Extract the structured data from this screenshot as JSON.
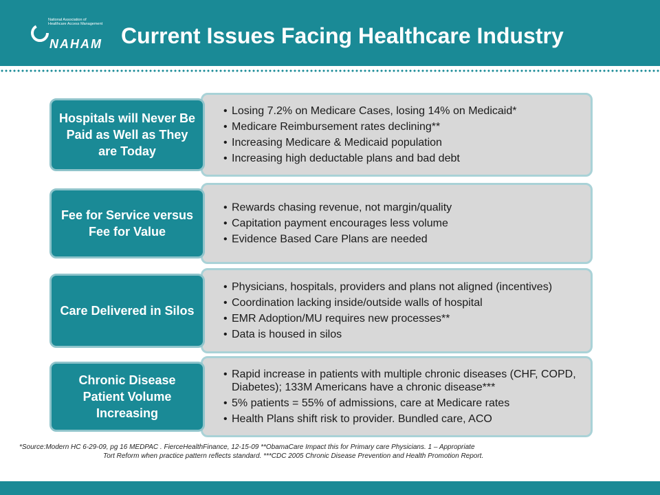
{
  "logo": {
    "org_line1": "National Association of",
    "org_line2": "Healthcare Access Management",
    "name": "NAHAM"
  },
  "title": "Current Issues Facing Healthcare Industry",
  "rows": [
    {
      "label": "Hospitals will Never Be Paid as Well as They are Today",
      "bullets": [
        "Losing 7.2% on Medicare Cases, losing 14% on Medicaid*",
        "Medicare Reimbursement rates declining**",
        "Increasing Medicare & Medicaid population",
        "Increasing high deductable plans and bad debt"
      ]
    },
    {
      "label": "Fee for Service versus Fee for Value",
      "bullets": [
        "Rewards chasing revenue, not margin/quality",
        "Capitation payment encourages less volume",
        "Evidence Based Care Plans are needed"
      ]
    },
    {
      "label": "Care Delivered in Silos",
      "bullets": [
        "Physicians, hospitals, providers and plans not aligned (incentives)",
        "Coordination lacking inside/outside walls of hospital",
        "EMR Adoption/MU requires new processes**",
        "Data is housed in silos"
      ]
    },
    {
      "label": "Chronic Disease Patient Volume Increasing",
      "bullets": [
        "Rapid increase in patients with multiple chronic diseases (CHF, COPD, Diabetes); 133M Americans have a chronic disease***",
        "5% patients = 55% of admissions, care at Medicare rates",
        "Health Plans shift risk to provider. Bundled care, ACO"
      ]
    }
  ],
  "footer": {
    "line1": "*Source:Modern HC 6-29-09, pg 16 MEDPAC . FierceHealthFinance, 12-15-09 **ObamaCare Impact this for Primary care Physicians. 1 – Appropriate",
    "line2": "Tort Reform when practice pattern reflects standard. ***CDC 2005 Chronic Disease Prevention and Health Promotion Report."
  }
}
